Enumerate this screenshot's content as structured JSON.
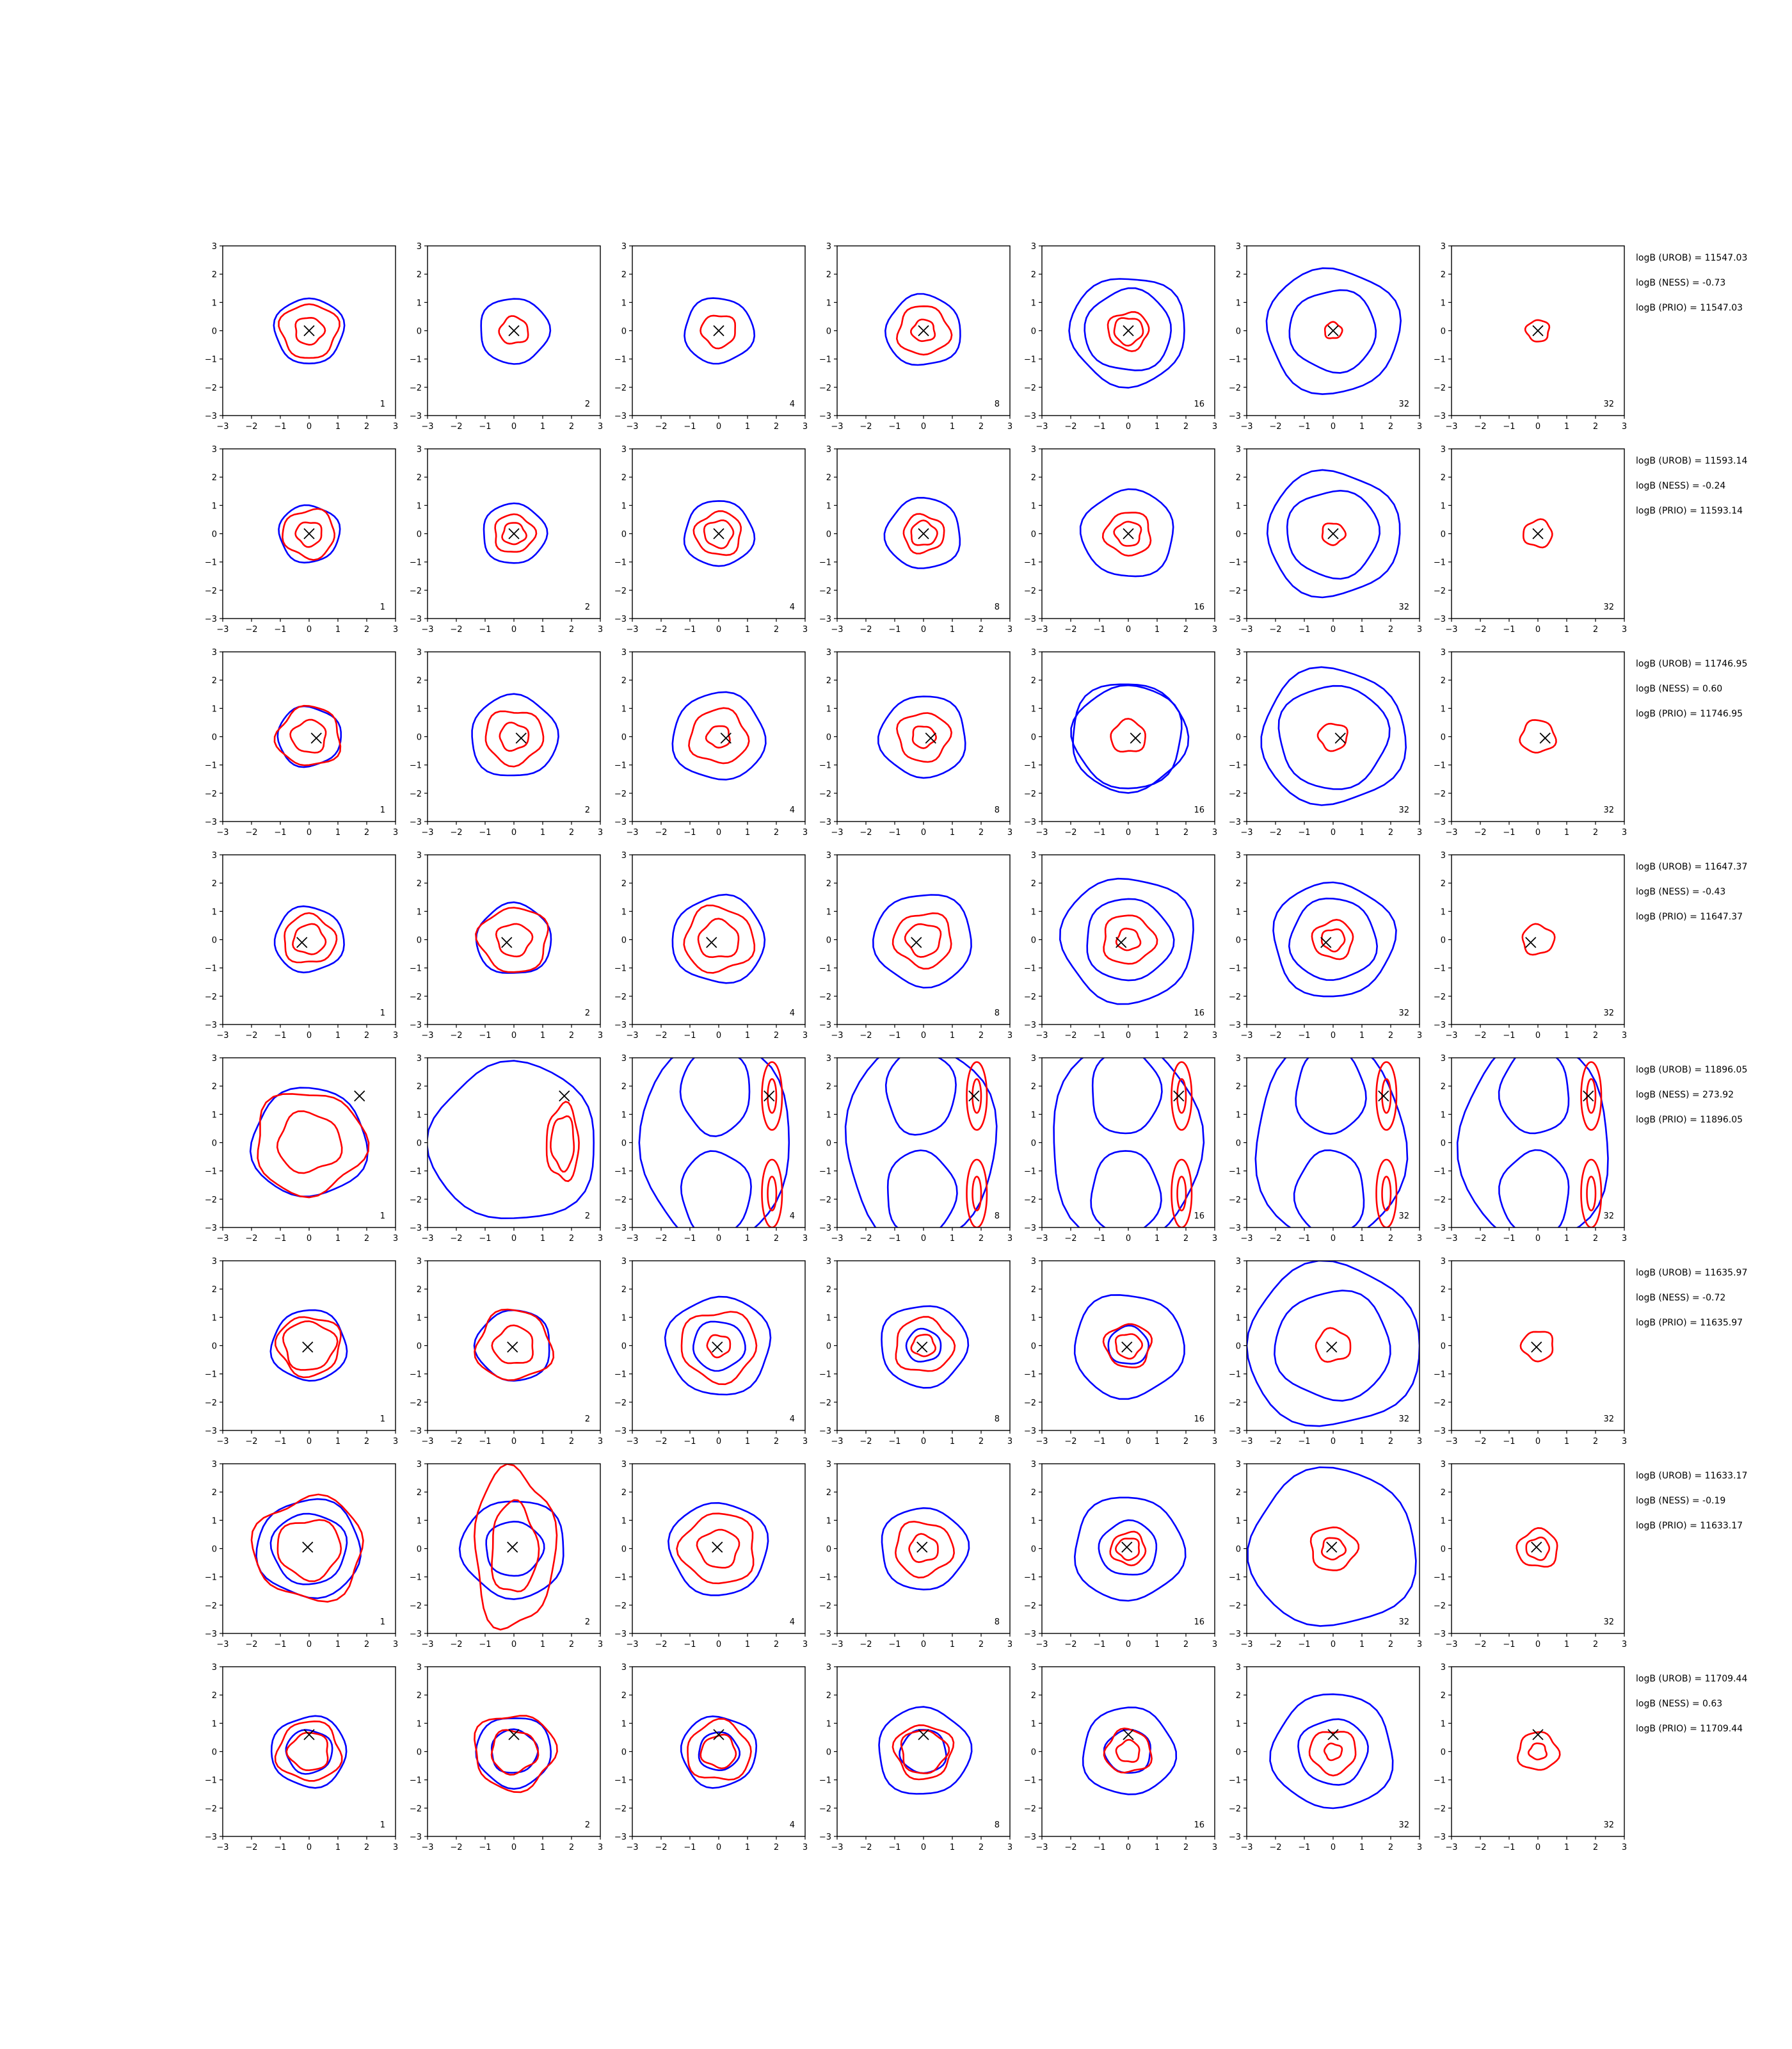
{
  "chart_data": {
    "type": "contour",
    "grid": {
      "rows": 8,
      "cols": 7
    },
    "xlim": [
      -3,
      3
    ],
    "ylim": [
      -3,
      3
    ],
    "ticks": [
      -3,
      -2,
      -1,
      0,
      1,
      2,
      3
    ],
    "tick_labels": [
      "−3",
      "−2",
      "−1",
      "0",
      "1",
      "2",
      "3"
    ],
    "colors": {
      "series_a": "#0000ff",
      "series_b": "#ff0000",
      "marker": "#000000"
    },
    "panel_counts": [
      "1",
      "2",
      "4",
      "8",
      "16",
      "32",
      "32"
    ],
    "rows": [
      {
        "logb": [
          "logB (UROB) = 11547.03",
          "logB (NESS) = -0.73",
          "logB (PRIO) = 11547.03"
        ],
        "marker": [
          0.0,
          0.0
        ],
        "blue": [
          [
            1.2,
            1.2,
            1.2,
            1.3,
            1.5,
            1.5,
            0
          ],
          [
            0,
            0,
            0,
            0,
            2.0,
            2.3,
            0
          ]
        ],
        "red": [
          [
            1.0,
            0.5,
            0.6,
            0.9,
            0.7,
            0.3,
            0.4
          ],
          [
            0.5,
            0,
            0,
            0.4,
            0.5,
            0,
            0
          ]
        ]
      },
      {
        "logb": [
          "logB (UROB) = 11593.14",
          "logB (NESS) = -0.24",
          "logB (PRIO) = 11593.14"
        ],
        "marker": [
          0.0,
          0.0
        ],
        "blue": [
          [
            1.05,
            1.1,
            1.2,
            1.3,
            1.6,
            1.6,
            0
          ],
          [
            0,
            0,
            0,
            0,
            0,
            2.3,
            0
          ]
        ],
        "red": [
          [
            0.9,
            0.7,
            0.8,
            0.7,
            0.8,
            0.4,
            0.5
          ],
          [
            0.45,
            0.4,
            0.5,
            0.45,
            0.45,
            0,
            0
          ]
        ]
      },
      {
        "logb": [
          "logB (UROB) = 11746.95",
          "logB (NESS) = 0.60",
          "logB (PRIO) = 11746.95"
        ],
        "marker": [
          0.25,
          -0.05
        ],
        "blue": [
          [
            1.1,
            1.5,
            1.6,
            1.5,
            1.9,
            1.9,
            0
          ],
          [
            0,
            0,
            0,
            0,
            2.0,
            2.5,
            0
          ]
        ],
        "red": [
          [
            1.1,
            1.0,
            1.0,
            0.9,
            0.6,
            0.5,
            0.6
          ],
          [
            0.6,
            0.5,
            0.4,
            0.4,
            0,
            0,
            0
          ]
        ]
      },
      {
        "logb": [
          "logB (UROB) = 11647.37",
          "logB (NESS) = -0.43",
          "logB (PRIO) = 11647.37"
        ],
        "marker": [
          -0.25,
          -0.1
        ],
        "blue": [
          [
            1.2,
            1.3,
            1.6,
            1.7,
            2.3,
            2.1,
            0
          ],
          [
            0,
            0,
            0,
            0,
            1.5,
            1.5,
            0
          ]
        ],
        "red": [
          [
            0.9,
            1.2,
            1.2,
            1.0,
            0.9,
            0.7,
            0.55
          ],
          [
            0.55,
            0.6,
            0.7,
            0.6,
            0.4,
            0.4,
            0
          ]
        ]
      },
      {
        "logb": [
          "logB (UROB) = 11896.05",
          "logB (NESS) = 273.92",
          "logB (PRIO) = 11896.05"
        ],
        "marker": [
          1.75,
          1.65
        ],
        "blue": [
          [
            2.0,
            2.9,
            3.5,
            3.5,
            3.5,
            3.5,
            0
          ],
          [
            0,
            0,
            0,
            0,
            0,
            0,
            0
          ]
        ],
        "red": [
          [
            1.9,
            1.4,
            1.4,
            1.4,
            1.4,
            1.4,
            1.4
          ],
          [
            1.1,
            1.0,
            0.7,
            0.7,
            0.7,
            0.5,
            0.5
          ]
        ]
      },
      {
        "logb": [
          "logB (UROB) = 11635.97",
          "logB (NESS) = -0.72",
          "logB (PRIO) = 11635.97"
        ],
        "marker": [
          -0.05,
          -0.05
        ],
        "blue": [
          [
            1.3,
            1.3,
            1.8,
            1.5,
            1.9,
            3.0,
            0
          ],
          [
            0,
            0,
            0.9,
            0.6,
            0.7,
            2.0,
            0
          ]
        ],
        "red": [
          [
            1.1,
            1.3,
            1.3,
            1.0,
            0.8,
            0.6,
            0.55
          ],
          [
            0.9,
            0.7,
            0.4,
            0.4,
            0.45,
            0,
            0
          ]
        ]
      },
      {
        "logb": [
          "logB (UROB) = 11633.17",
          "logB (NESS) = -0.19",
          "logB (PRIO) = 11633.17"
        ],
        "marker": [
          -0.05,
          0.05
        ],
        "blue": [
          [
            1.8,
            1.8,
            1.7,
            1.5,
            1.9,
            2.9,
            0
          ],
          [
            1.3,
            1.0,
            0,
            0,
            1.0,
            0,
            0
          ]
        ],
        "red": [
          [
            1.9,
            2.8,
            1.3,
            1.0,
            0.6,
            0.8,
            0.7
          ],
          [
            1.1,
            1.6,
            0.7,
            0.5,
            0.4,
            0.4,
            0.4
          ]
        ]
      },
      {
        "logb": [
          "logB (UROB) = 11709.44",
          "logB (NESS) = 0.63",
          "logB (PRIO) = 11709.44"
        ],
        "marker": [
          0.0,
          0.6
        ],
        "blue": [
          [
            1.3,
            1.3,
            1.3,
            1.6,
            1.6,
            2.1,
            0
          ],
          [
            0.8,
            0.8,
            0.7,
            0.8,
            0.8,
            1.2,
            0
          ]
        ],
        "red": [
          [
            1.1,
            1.4,
            1.1,
            1.0,
            0.8,
            0.8,
            0.7
          ],
          [
            0.7,
            0.8,
            0.6,
            0.8,
            0.4,
            0.3,
            0.3
          ]
        ]
      }
    ]
  }
}
